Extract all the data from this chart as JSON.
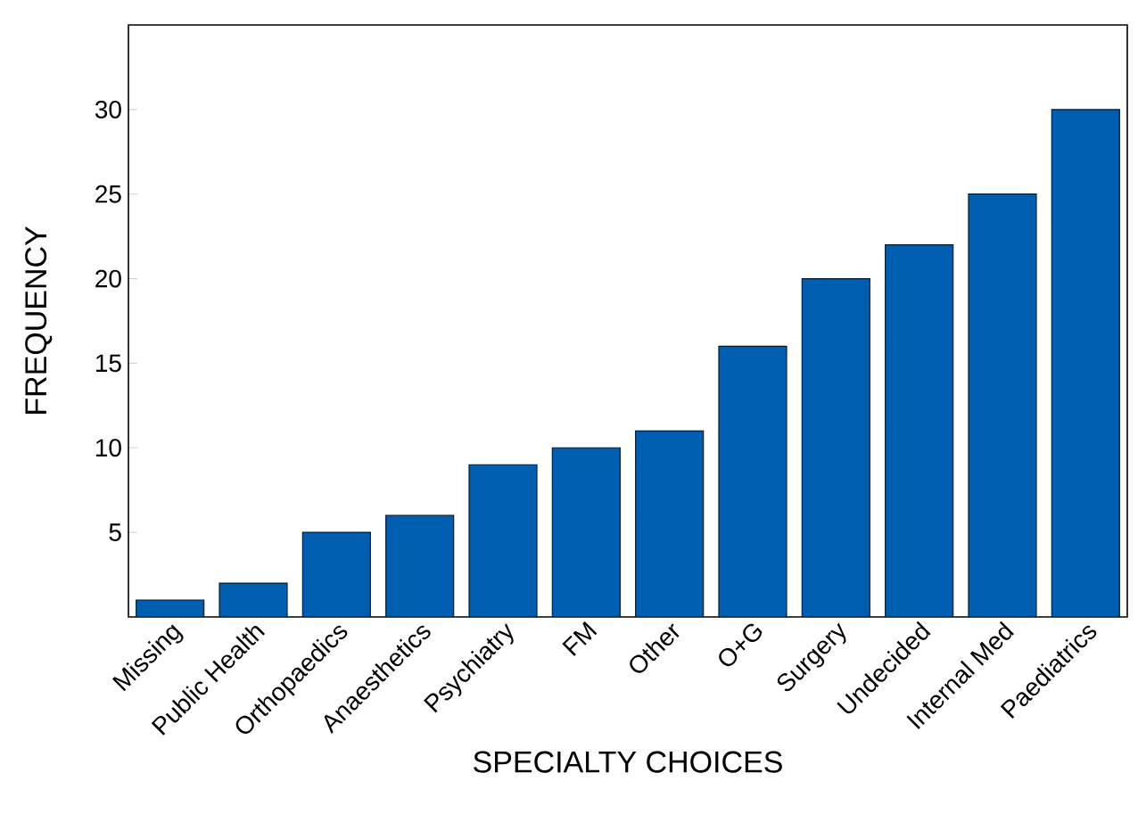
{
  "chart_data": {
    "type": "bar",
    "xlabel": "SPECIALTY CHOICES",
    "ylabel": "FREQUENCY",
    "categories": [
      "Missing",
      "Public Health",
      "Orthopaedics",
      "Anaesthetics",
      "Psychiatry",
      "FM",
      "Other",
      "O+G",
      "Surgery",
      "Undecided",
      "Internal Med",
      "Paediatrics"
    ],
    "values": [
      1,
      2,
      5,
      6,
      9,
      10,
      11,
      16,
      20,
      22,
      25,
      30
    ],
    "color": "#005eb0",
    "ylim": [
      0,
      35
    ],
    "yticks": [
      5,
      10,
      15,
      20,
      25,
      30
    ]
  }
}
